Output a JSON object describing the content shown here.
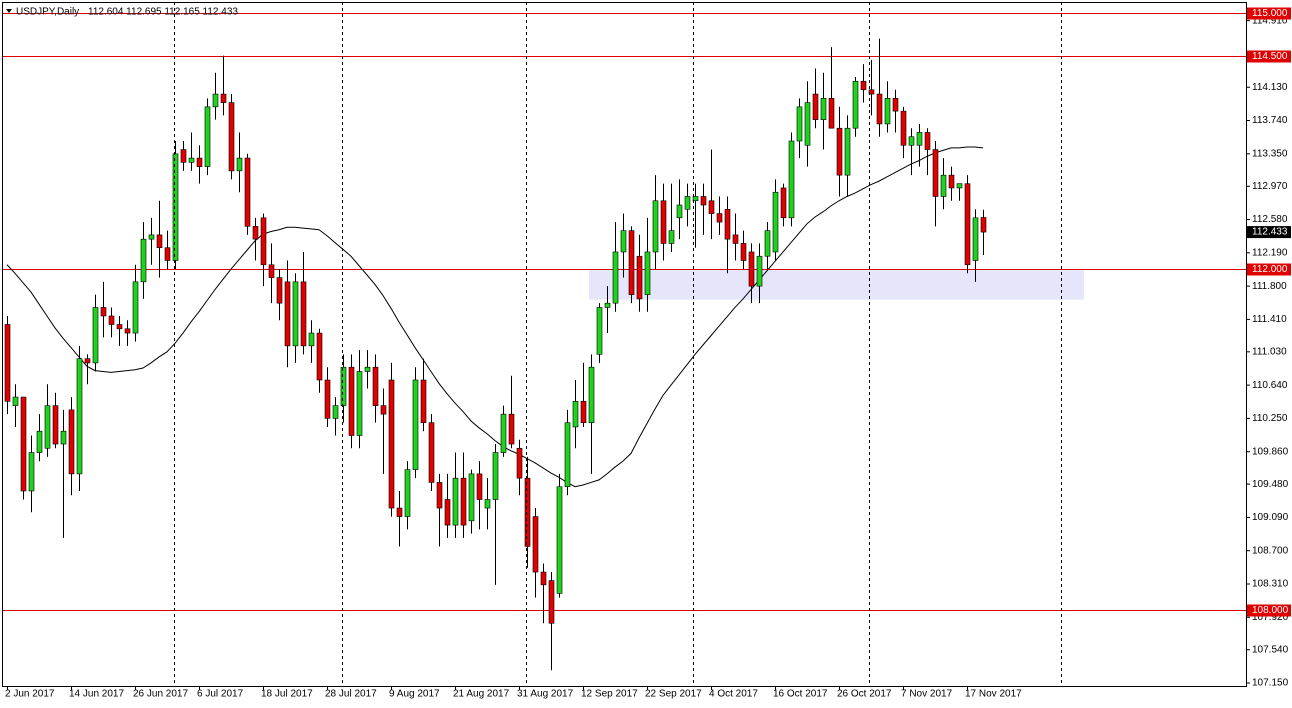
{
  "chart_data": {
    "type": "candlestick",
    "title": "USDJPY,Daily",
    "ohlc_text": "112.604 112.695 112.165 112.433",
    "categories": [
      "2 Jun 2017",
      null,
      null,
      null,
      null,
      null,
      null,
      null,
      "14 Jun 2017",
      null,
      null,
      null,
      null,
      null,
      null,
      null,
      "26 Jun 2017",
      null,
      null,
      null,
      null,
      null,
      null,
      null,
      "6 Jul 2017",
      null,
      null,
      null,
      null,
      null,
      null,
      null,
      "18 Jul 2017",
      null,
      null,
      null,
      null,
      null,
      null,
      null,
      "28 Jul 2017",
      null,
      null,
      null,
      null,
      null,
      null,
      null,
      "9 Aug 2017",
      null,
      null,
      null,
      null,
      null,
      null,
      null,
      "21 Aug 2017",
      null,
      null,
      null,
      null,
      null,
      null,
      null,
      "31 Aug 2017",
      null,
      null,
      null,
      null,
      null,
      null,
      null,
      "12 Sep 2017",
      null,
      null,
      null,
      null,
      null,
      null,
      null,
      "22 Sep 2017",
      null,
      null,
      null,
      null,
      null,
      null,
      null,
      "4 Oct 2017",
      null,
      null,
      null,
      null,
      null,
      null,
      null,
      "16 Oct 2017",
      null,
      null,
      null,
      null,
      null,
      null,
      null,
      "26 Oct 2017",
      null,
      null,
      null,
      null,
      null,
      null,
      null,
      "7 Nov 2017",
      null,
      null,
      null,
      null,
      null,
      null,
      null,
      "17 Nov 2017",
      null,
      null
    ],
    "open": [
      111.35,
      110.4,
      110.5,
      109.4,
      109.85,
      109.9,
      110.4,
      109.95,
      110.35,
      109.6,
      110.95,
      110.9,
      111.55,
      111.45,
      111.35,
      111.3,
      111.25,
      111.85,
      112.35,
      112.4,
      112.25,
      112.1,
      113.4,
      113.25,
      113.3,
      113.2,
      113.9,
      114.05,
      113.95,
      113.15,
      113.3,
      112.5,
      112.6,
      112.05,
      111.9,
      111.85,
      111.1,
      111.85,
      111.1,
      111.25,
      110.7,
      110.25,
      110.4,
      110.85,
      110.05,
      110.8,
      110.85,
      110.4,
      110.7,
      109.2,
      109.1,
      109.65,
      110.7,
      110.2,
      109.5,
      109.3,
      109.0,
      109.55,
      109.05,
      109.6,
      109.2,
      109.3,
      109.85,
      110.3,
      109.9,
      109.55,
      109.1,
      108.45,
      108.35,
      108.2,
      109.45,
      110.15,
      110.45,
      110.2,
      111.0,
      111.55,
      111.6,
      112.2,
      112.45,
      112.15,
      111.7,
      112.2,
      112.8,
      112.3,
      112.6,
      112.7,
      112.8,
      112.85,
      112.8,
      112.65,
      112.7,
      112.4,
      112.3,
      112.2,
      111.8,
      112.15,
      112.2,
      112.95,
      112.6,
      113.5,
      113.45,
      114.05,
      113.75,
      114.0,
      113.65,
      113.1,
      113.65,
      114.2,
      114.1,
      114.05,
      113.7,
      114.0,
      113.85,
      113.45,
      113.45,
      113.6,
      113.4,
      112.85,
      113.1,
      112.95,
      113.0,
      112.1,
      112.604
    ],
    "high": [
      111.45,
      110.65,
      110.5,
      110.05,
      110.3,
      110.65,
      110.55,
      110.35,
      110.5,
      111.1,
      111.0,
      111.7,
      111.85,
      111.55,
      111.45,
      111.4,
      112.05,
      112.55,
      112.6,
      112.8,
      112.45,
      113.5,
      113.5,
      113.6,
      113.45,
      114.0,
      114.3,
      114.5,
      114.05,
      113.6,
      113.35,
      112.6,
      112.65,
      112.3,
      112.0,
      112.1,
      111.95,
      112.2,
      111.4,
      111.3,
      110.85,
      110.5,
      111.0,
      111.0,
      111.05,
      111.05,
      111.0,
      110.6,
      110.9,
      109.4,
      109.75,
      110.85,
      110.95,
      110.3,
      109.6,
      109.6,
      109.85,
      109.85,
      109.65,
      109.75,
      109.55,
      109.95,
      110.4,
      110.75,
      110.0,
      109.8,
      109.2,
      108.55,
      108.45,
      109.6,
      110.35,
      110.7,
      110.9,
      111.0,
      111.6,
      111.8,
      112.55,
      112.65,
      112.5,
      112.4,
      112.6,
      113.1,
      113.0,
      113.0,
      113.05,
      113.0,
      113.0,
      113.0,
      113.4,
      112.85,
      112.85,
      112.65,
      112.45,
      112.3,
      112.3,
      112.55,
      113.05,
      113.0,
      113.6,
      114.0,
      114.2,
      114.35,
      114.3,
      114.6,
      113.9,
      113.8,
      114.25,
      114.4,
      114.45,
      114.7,
      114.2,
      114.1,
      113.9,
      113.65,
      113.7,
      113.65,
      113.5,
      113.3,
      113.2,
      113.0,
      113.1,
      112.7,
      112.695
    ],
    "low": [
      110.3,
      110.15,
      109.3,
      109.15,
      109.75,
      109.8,
      109.9,
      108.85,
      109.35,
      109.4,
      110.65,
      110.8,
      111.2,
      111.2,
      111.1,
      111.1,
      111.15,
      111.65,
      112.05,
      111.9,
      112.0,
      112.0,
      113.15,
      113.15,
      113.0,
      113.1,
      113.75,
      113.8,
      113.05,
      112.9,
      112.4,
      112.1,
      111.8,
      111.6,
      111.4,
      110.85,
      110.9,
      111.0,
      110.9,
      110.55,
      110.15,
      110.05,
      110.2,
      109.9,
      109.9,
      110.6,
      110.2,
      109.6,
      109.1,
      108.75,
      108.95,
      109.55,
      110.1,
      109.4,
      108.75,
      108.85,
      108.85,
      108.85,
      108.9,
      108.95,
      108.95,
      108.3,
      109.8,
      109.9,
      109.35,
      108.5,
      108.15,
      107.85,
      107.3,
      108.15,
      109.35,
      109.9,
      110.15,
      109.6,
      110.9,
      111.25,
      111.5,
      111.9,
      111.6,
      111.5,
      111.5,
      112.0,
      112.1,
      112.2,
      112.35,
      112.5,
      112.25,
      112.4,
      112.35,
      112.4,
      111.95,
      112.1,
      112.0,
      111.6,
      111.6,
      112.0,
      112.1,
      112.5,
      112.5,
      113.3,
      113.2,
      113.65,
      113.4,
      113.7,
      112.85,
      112.85,
      113.55,
      113.95,
      113.8,
      113.55,
      113.6,
      113.6,
      113.3,
      113.1,
      113.2,
      113.1,
      112.5,
      112.7,
      112.8,
      112.8,
      111.95,
      111.85,
      112.165
    ],
    "close": [
      110.45,
      110.5,
      109.4,
      109.85,
      110.1,
      110.4,
      109.95,
      110.1,
      109.6,
      110.95,
      110.9,
      111.55,
      111.45,
      111.35,
      111.3,
      111.25,
      111.85,
      112.35,
      112.4,
      112.25,
      112.1,
      113.35,
      113.25,
      113.3,
      113.2,
      113.9,
      114.05,
      113.95,
      113.15,
      113.3,
      112.5,
      112.35,
      112.05,
      111.9,
      111.6,
      111.1,
      111.85,
      111.1,
      111.25,
      110.7,
      110.25,
      110.4,
      110.85,
      110.05,
      110.8,
      110.85,
      110.4,
      110.3,
      109.2,
      109.1,
      109.65,
      110.7,
      110.2,
      109.5,
      109.2,
      109.0,
      109.55,
      109.0,
      109.6,
      109.3,
      109.3,
      109.85,
      110.3,
      109.95,
      109.55,
      108.75,
      108.45,
      108.3,
      107.85,
      109.45,
      110.2,
      110.45,
      110.2,
      110.85,
      111.55,
      111.6,
      112.2,
      112.45,
      111.7,
      111.65,
      112.2,
      112.8,
      112.3,
      112.45,
      112.75,
      112.85,
      112.85,
      112.75,
      112.65,
      112.55,
      112.35,
      112.3,
      112.1,
      111.8,
      112.15,
      112.45,
      112.9,
      112.6,
      113.5,
      113.9,
      113.95,
      113.75,
      114.0,
      113.65,
      113.1,
      113.65,
      114.2,
      114.1,
      114.05,
      113.7,
      114.0,
      113.85,
      113.45,
      113.55,
      113.6,
      113.4,
      112.85,
      113.1,
      112.95,
      113.0,
      112.05,
      112.6,
      112.433
    ],
    "up_color": "#1ed21e",
    "down_color": "#e00000",
    "ma": {
      "color": "#000000",
      "values": [
        112.05,
        111.95,
        111.84,
        111.73,
        111.59,
        111.45,
        111.31,
        111.19,
        111.08,
        110.97,
        110.86,
        110.81,
        110.8,
        110.79,
        110.8,
        110.81,
        110.82,
        110.84,
        110.9,
        110.97,
        111.03,
        111.13,
        111.25,
        111.38,
        111.5,
        111.63,
        111.76,
        111.88,
        112.0,
        112.11,
        112.22,
        112.33,
        112.41,
        112.44,
        112.46,
        112.49,
        112.49,
        112.48,
        112.47,
        112.46,
        112.39,
        112.31,
        112.23,
        112.15,
        112.04,
        111.93,
        111.82,
        111.69,
        111.54,
        111.38,
        111.23,
        111.08,
        110.94,
        110.8,
        110.66,
        110.54,
        110.43,
        110.33,
        110.22,
        110.14,
        110.07,
        109.99,
        109.92,
        109.87,
        109.83,
        109.78,
        109.73,
        109.67,
        109.61,
        109.56,
        109.5,
        109.45,
        109.47,
        109.5,
        109.53,
        109.6,
        109.68,
        109.75,
        109.84,
        110.02,
        110.19,
        110.36,
        110.52,
        110.64,
        110.76,
        110.88,
        111.0,
        111.11,
        111.22,
        111.33,
        111.44,
        111.55,
        111.65,
        111.76,
        111.87,
        111.98,
        112.09,
        112.2,
        112.31,
        112.42,
        112.53,
        112.61,
        112.67,
        112.74,
        112.8,
        112.85,
        112.89,
        112.94,
        112.99,
        113.03,
        113.08,
        113.13,
        113.18,
        113.23,
        113.27,
        113.32,
        113.36,
        113.39,
        113.42,
        113.42,
        113.43,
        113.43,
        113.42
      ]
    },
    "levels": [
      {
        "value": 115,
        "label": "115.000"
      },
      {
        "value": 114.5,
        "label": "114.500"
      },
      {
        "value": 112,
        "label": "112.000"
      },
      {
        "value": 108,
        "label": "108.000"
      }
    ],
    "level_color": "#e00000",
    "zone": {
      "values": [
        111.64,
        112.0
      ],
      "color": "#e6e6fa"
    },
    "last": {
      "value": 112.433,
      "label": "112.433"
    },
    "ylim": [
      107.115,
      115.152
    ],
    "yticks": [
      {
        "value": 114.91,
        "label": "114.910"
      },
      {
        "value": 114.13,
        "label": "114.130"
      },
      {
        "value": 113.74,
        "label": "113.740"
      },
      {
        "value": 113.35,
        "label": "113.350"
      },
      {
        "value": 112.97,
        "label": "112.970"
      },
      {
        "value": 112.58,
        "label": "112.580"
      },
      {
        "value": 112.19,
        "label": "112.190"
      },
      {
        "value": 111.8,
        "label": "111.800"
      },
      {
        "value": 111.41,
        "label": "111.410"
      },
      {
        "value": 111.03,
        "label": "111.030"
      },
      {
        "value": 110.64,
        "label": "110.640"
      },
      {
        "value": 110.25,
        "label": "110.250"
      },
      {
        "value": 109.86,
        "label": "109.860"
      },
      {
        "value": 109.48,
        "label": "109.480"
      },
      {
        "value": 109.09,
        "label": "109.090"
      },
      {
        "value": 108.7,
        "label": "108.700"
      },
      {
        "value": 108.31,
        "label": "108.310"
      },
      {
        "value": 107.92,
        "label": "107.920"
      },
      {
        "value": 107.54,
        "label": "107.540"
      },
      {
        "value": 107.15,
        "label": "107.150"
      }
    ]
  }
}
